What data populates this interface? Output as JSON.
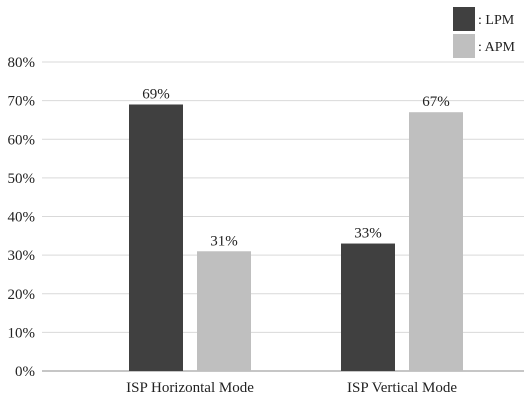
{
  "chart_data": {
    "type": "bar",
    "categories": [
      "ISP Horizontal Mode",
      "ISP Vertical Mode"
    ],
    "series": [
      {
        "name": ": LPM",
        "values": [
          69,
          33
        ],
        "labels": [
          "69%",
          "33%"
        ],
        "color": "#404040"
      },
      {
        "name": ": APM",
        "values": [
          31,
          67
        ],
        "labels": [
          "31%",
          "67%"
        ],
        "color": "#bfbfbf"
      }
    ],
    "y_ticks": [
      {
        "value": 0,
        "label": "0%"
      },
      {
        "value": 10,
        "label": "10%"
      },
      {
        "value": 20,
        "label": "20%"
      },
      {
        "value": 30,
        "label": "30%"
      },
      {
        "value": 40,
        "label": "40%"
      },
      {
        "value": 50,
        "label": "50%"
      },
      {
        "value": 60,
        "label": "60%"
      },
      {
        "value": 70,
        "label": "70%"
      },
      {
        "value": 80,
        "label": "80%"
      }
    ],
    "ylim": [
      0,
      80
    ],
    "grid": true,
    "legend_position": "top-right",
    "title": "",
    "xlabel": "",
    "ylabel": ""
  }
}
